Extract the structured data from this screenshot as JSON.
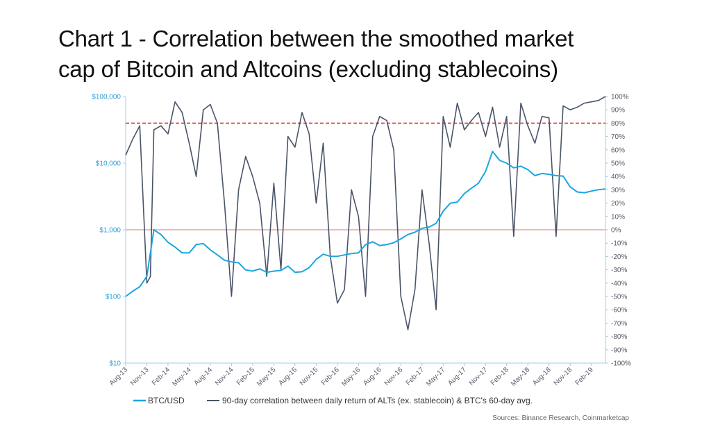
{
  "title": {
    "line1": "Chart 1 - Correlation between the smoothed market",
    "line2": "cap of Bitcoin and Altcoins (excluding stablecoins)"
  },
  "source": "Sources: Binance Research, Coinmarketcap",
  "colors": {
    "btc": "#1ba6e0",
    "corr": "#4a5468",
    "line80": "#d93c3c",
    "line0": "#f2b8b8",
    "axis": "#9ecfe8"
  },
  "chart_data": {
    "type": "line",
    "left_axis": {
      "scale": "log",
      "range": [
        10,
        100000
      ],
      "ticks": [
        10,
        100,
        1000,
        10000,
        100000
      ],
      "tick_labels": [
        "$10",
        "$100",
        "$1,000",
        "$10,000",
        "$100,000"
      ]
    },
    "right_axis": {
      "range": [
        -100,
        100
      ],
      "ticks": [
        100,
        90,
        80,
        70,
        60,
        50,
        40,
        30,
        20,
        10,
        0,
        -10,
        -20,
        -30,
        -40,
        -50,
        -60,
        -70,
        -80,
        -90,
        -100
      ],
      "tick_labels": [
        "100%",
        "90%",
        "80%",
        "70%",
        "60%",
        "50%",
        "40%",
        "30%",
        "20%",
        "10%",
        "0%",
        "-10%",
        "-20%",
        "-30%",
        "-40%",
        "-50%",
        "-60%",
        "-70%",
        "-80%",
        "-90%",
        "-100%"
      ]
    },
    "x_axis": {
      "range": [
        "2013-08",
        "2019-04"
      ],
      "tick_labels": [
        "Aug-13",
        "Nov-13",
        "Feb-14",
        "May-14",
        "Aug-14",
        "Nov-14",
        "Feb-15",
        "May-15",
        "Aug-15",
        "Nov-15",
        "Feb-16",
        "May-16",
        "Aug-16",
        "Nov-16",
        "Feb-17",
        "May-17",
        "Aug-17",
        "Nov-17",
        "Feb-18",
        "May-18",
        "Aug-18",
        "Nov-18",
        "Feb-19"
      ]
    },
    "reference_lines": [
      {
        "axis": "right",
        "value": 80,
        "style": "dashed"
      },
      {
        "axis": "right",
        "value": 0,
        "style": "solid"
      }
    ],
    "series": [
      {
        "name": "BTC/USD",
        "axis": "left",
        "x": [
          "2013-08",
          "2013-09",
          "2013-10",
          "2013-11",
          "2013-12",
          "2014-01",
          "2014-02",
          "2014-03",
          "2014-04",
          "2014-05",
          "2014-06",
          "2014-07",
          "2014-08",
          "2014-09",
          "2014-10",
          "2014-11",
          "2014-12",
          "2015-01",
          "2015-02",
          "2015-03",
          "2015-04",
          "2015-05",
          "2015-06",
          "2015-07",
          "2015-08",
          "2015-09",
          "2015-10",
          "2015-11",
          "2015-12",
          "2016-01",
          "2016-02",
          "2016-03",
          "2016-04",
          "2016-05",
          "2016-06",
          "2016-07",
          "2016-08",
          "2016-09",
          "2016-10",
          "2016-11",
          "2016-12",
          "2017-01",
          "2017-02",
          "2017-03",
          "2017-04",
          "2017-05",
          "2017-06",
          "2017-07",
          "2017-08",
          "2017-09",
          "2017-10",
          "2017-11",
          "2017-12",
          "2018-01",
          "2018-02",
          "2018-03",
          "2018-04",
          "2018-05",
          "2018-06",
          "2018-07",
          "2018-08",
          "2018-09",
          "2018-10",
          "2018-11",
          "2018-12",
          "2019-01",
          "2019-02",
          "2019-03",
          "2019-04"
        ],
        "values": [
          100,
          120,
          140,
          200,
          1000,
          850,
          650,
          550,
          450,
          450,
          600,
          620,
          500,
          420,
          350,
          330,
          320,
          250,
          240,
          260,
          230,
          240,
          245,
          285,
          230,
          235,
          270,
          360,
          430,
          400,
          400,
          420,
          440,
          450,
          600,
          660,
          580,
          600,
          640,
          730,
          850,
          920,
          1050,
          1100,
          1250,
          1900,
          2500,
          2600,
          3500,
          4200,
          5000,
          7500,
          15000,
          11000,
          10000,
          8500,
          9000,
          8000,
          6500,
          7000,
          6800,
          6500,
          6400,
          4400,
          3700,
          3600,
          3800,
          4000,
          4100
        ]
      },
      {
        "name": "90-day correlation between daily return of ALTs (ex. stablecoin) & BTC's 60-day avg.",
        "axis": "right",
        "x": [
          "2013-08",
          "2013-09",
          "2013-10",
          "2013-11",
          "2013-11",
          "2013-12",
          "2014-01",
          "2014-02",
          "2014-03",
          "2014-04",
          "2014-05",
          "2014-06",
          "2014-07",
          "2014-08",
          "2014-09",
          "2014-10",
          "2014-11",
          "2014-12",
          "2015-01",
          "2015-02",
          "2015-03",
          "2015-04",
          "2015-05",
          "2015-06",
          "2015-07",
          "2015-08",
          "2015-09",
          "2015-10",
          "2015-11",
          "2015-12",
          "2016-01",
          "2016-02",
          "2016-03",
          "2016-04",
          "2016-05",
          "2016-06",
          "2016-07",
          "2016-08",
          "2016-09",
          "2016-10",
          "2016-11",
          "2016-12",
          "2017-01",
          "2017-02",
          "2017-03",
          "2017-04",
          "2017-05",
          "2017-06",
          "2017-07",
          "2017-08",
          "2017-09",
          "2017-10",
          "2017-11",
          "2017-12",
          "2018-01",
          "2018-02",
          "2018-03",
          "2018-04",
          "2018-05",
          "2018-06",
          "2018-07",
          "2018-08",
          "2018-09",
          "2018-10",
          "2018-11",
          "2018-12",
          "2019-01",
          "2019-02",
          "2019-03",
          "2019-04"
        ],
        "values": [
          56,
          68,
          78,
          -40,
          -35,
          75,
          78,
          72,
          96,
          88,
          65,
          40,
          90,
          94,
          80,
          20,
          -50,
          30,
          55,
          40,
          20,
          -35,
          35,
          -30,
          70,
          62,
          88,
          72,
          20,
          65,
          -20,
          -55,
          -45,
          30,
          10,
          -50,
          70,
          85,
          82,
          60,
          -50,
          -75,
          -45,
          30,
          -10,
          -60,
          85,
          62,
          95,
          75,
          82,
          88,
          70,
          92,
          62,
          85,
          -5,
          95,
          78,
          65,
          85,
          84,
          -5,
          93,
          90,
          92,
          95,
          96,
          97,
          100
        ]
      }
    ]
  }
}
